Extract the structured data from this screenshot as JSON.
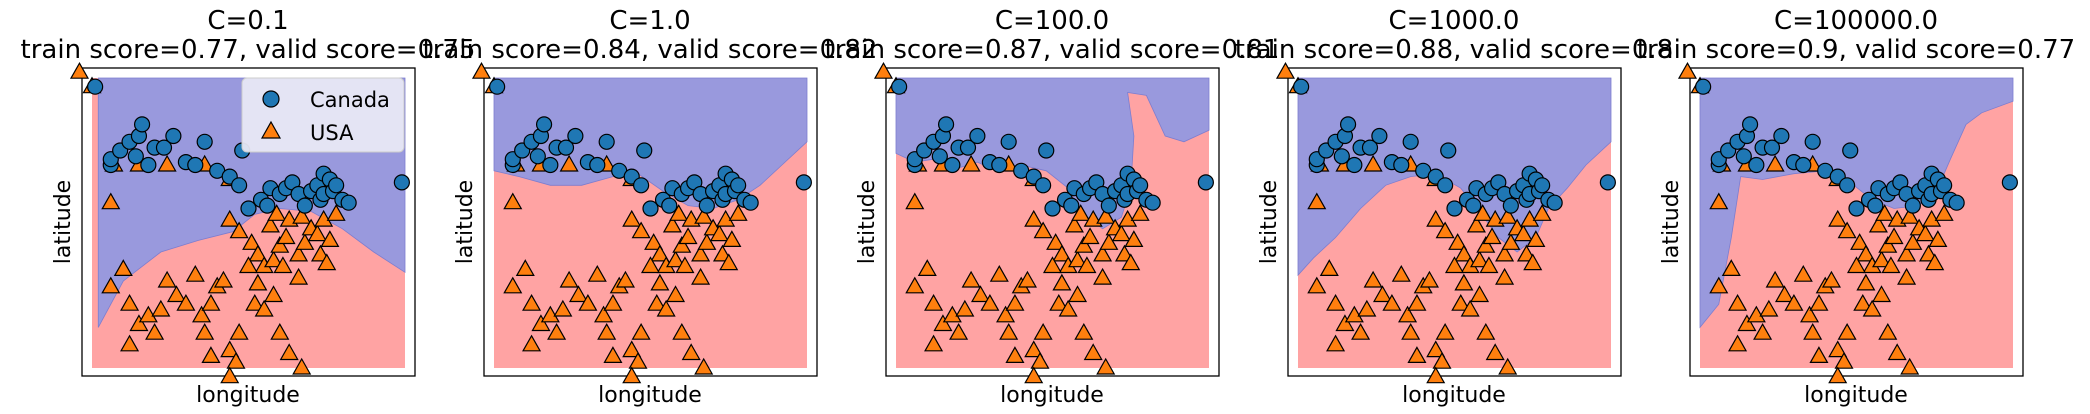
{
  "chart_data": [
    {
      "type": "scatter",
      "title": "C=0.1",
      "subtitle": "train score=0.77, valid score=0.75",
      "xlabel": "longitude",
      "ylabel": "latitude",
      "legend": {
        "entries": [
          "Canada",
          "USA"
        ],
        "placement": "top-right"
      },
      "decision_boundary": [
        [
          0.02,
          0.14
        ],
        [
          0.1,
          0.3
        ],
        [
          0.22,
          0.4
        ],
        [
          0.34,
          0.44
        ],
        [
          0.45,
          0.47
        ],
        [
          0.52,
          0.53
        ],
        [
          0.6,
          0.55
        ],
        [
          0.7,
          0.54
        ],
        [
          0.8,
          0.48
        ],
        [
          0.9,
          0.4
        ],
        [
          1.0,
          0.33
        ]
      ]
    },
    {
      "type": "scatter",
      "title": "C=1.0",
      "subtitle": "train score=0.84, valid score=0.82",
      "xlabel": "longitude",
      "ylabel": "latitude",
      "decision_boundary": [
        [
          0.0,
          0.68
        ],
        [
          0.08,
          0.66
        ],
        [
          0.18,
          0.63
        ],
        [
          0.28,
          0.63
        ],
        [
          0.38,
          0.66
        ],
        [
          0.46,
          0.67
        ],
        [
          0.54,
          0.61
        ],
        [
          0.62,
          0.56
        ],
        [
          0.7,
          0.55
        ],
        [
          0.78,
          0.58
        ],
        [
          0.85,
          0.63
        ],
        [
          0.92,
          0.7
        ],
        [
          1.0,
          0.78
        ]
      ]
    },
    {
      "type": "scatter",
      "title": "C=100.0",
      "subtitle": "train score=0.87, valid score=0.81",
      "xlabel": "longitude",
      "ylabel": "latitude",
      "decision_boundary": [
        [
          0.0,
          0.74
        ],
        [
          0.06,
          0.71
        ],
        [
          0.12,
          0.72
        ],
        [
          0.2,
          0.69
        ],
        [
          0.26,
          0.71
        ],
        [
          0.32,
          0.68
        ],
        [
          0.4,
          0.7
        ],
        [
          0.48,
          0.68
        ],
        [
          0.55,
          0.62
        ],
        [
          0.6,
          0.53
        ],
        [
          0.66,
          0.48
        ],
        [
          0.72,
          0.52
        ],
        [
          0.75,
          0.62
        ],
        [
          0.76,
          0.8
        ],
        [
          0.74,
          0.95
        ],
        [
          0.8,
          0.94
        ],
        [
          0.86,
          0.8
        ],
        [
          0.92,
          0.78
        ],
        [
          1.0,
          0.82
        ]
      ]
    },
    {
      "type": "scatter",
      "title": "C=1000.0",
      "subtitle": "train score=0.88, valid score=0.8",
      "xlabel": "longitude",
      "ylabel": "latitude",
      "decision_boundary": [
        [
          0.0,
          0.32
        ],
        [
          0.05,
          0.38
        ],
        [
          0.12,
          0.45
        ],
        [
          0.2,
          0.55
        ],
        [
          0.28,
          0.63
        ],
        [
          0.36,
          0.66
        ],
        [
          0.44,
          0.67
        ],
        [
          0.52,
          0.62
        ],
        [
          0.58,
          0.54
        ],
        [
          0.64,
          0.45
        ],
        [
          0.7,
          0.4
        ],
        [
          0.76,
          0.45
        ],
        [
          0.8,
          0.55
        ],
        [
          0.86,
          0.62
        ],
        [
          0.92,
          0.7
        ],
        [
          1.0,
          0.78
        ]
      ]
    },
    {
      "type": "scatter",
      "title": "C=100000.0",
      "subtitle": "train score=0.9, valid score=0.77",
      "xlabel": "longitude",
      "ylabel": "latitude",
      "decision_boundary": [
        [
          0.0,
          0.14
        ],
        [
          0.06,
          0.22
        ],
        [
          0.1,
          0.45
        ],
        [
          0.13,
          0.66
        ],
        [
          0.2,
          0.65
        ],
        [
          0.3,
          0.67
        ],
        [
          0.4,
          0.68
        ],
        [
          0.48,
          0.64
        ],
        [
          0.55,
          0.58
        ],
        [
          0.62,
          0.55
        ],
        [
          0.7,
          0.56
        ],
        [
          0.76,
          0.62
        ],
        [
          0.8,
          0.72
        ],
        [
          0.85,
          0.84
        ],
        [
          0.9,
          0.88
        ],
        [
          1.0,
          0.92
        ]
      ]
    }
  ],
  "points": {
    "canada": [
      [
        0.01,
        0.97
      ],
      [
        0.06,
        0.7
      ],
      [
        0.06,
        0.72
      ],
      [
        0.09,
        0.75
      ],
      [
        0.12,
        0.78
      ],
      [
        0.14,
        0.73
      ],
      [
        0.15,
        0.8
      ],
      [
        0.16,
        0.84
      ],
      [
        0.18,
        0.7
      ],
      [
        0.2,
        0.76
      ],
      [
        0.23,
        0.76
      ],
      [
        0.26,
        0.8
      ],
      [
        0.3,
        0.71
      ],
      [
        0.33,
        0.7
      ],
      [
        0.36,
        0.78
      ],
      [
        0.4,
        0.68
      ],
      [
        0.44,
        0.66
      ],
      [
        0.47,
        0.63
      ],
      [
        0.48,
        0.75
      ],
      [
        0.5,
        0.55
      ],
      [
        0.54,
        0.58
      ],
      [
        0.56,
        0.56
      ],
      [
        0.57,
        0.62
      ],
      [
        0.6,
        0.6
      ],
      [
        0.62,
        0.62
      ],
      [
        0.64,
        0.64
      ],
      [
        0.66,
        0.6
      ],
      [
        0.68,
        0.56
      ],
      [
        0.7,
        0.61
      ],
      [
        0.72,
        0.63
      ],
      [
        0.73,
        0.58
      ],
      [
        0.74,
        0.6
      ],
      [
        0.74,
        0.67
      ],
      [
        0.76,
        0.65
      ],
      [
        0.77,
        0.61
      ],
      [
        0.78,
        0.63
      ],
      [
        0.8,
        0.58
      ],
      [
        0.82,
        0.57
      ],
      [
        0.99,
        0.64
      ]
    ],
    "usa": [
      [
        -0.04,
        1.02
      ],
      [
        0.0,
        0.97
      ],
      [
        0.06,
        0.57
      ],
      [
        0.07,
        0.7
      ],
      [
        0.15,
        0.7
      ],
      [
        0.24,
        0.7
      ],
      [
        0.36,
        0.7
      ],
      [
        0.44,
        0.65
      ],
      [
        0.44,
        0.51
      ],
      [
        0.47,
        0.47
      ],
      [
        0.51,
        0.43
      ],
      [
        0.53,
        0.39
      ],
      [
        0.53,
        0.29
      ],
      [
        0.55,
        0.35
      ],
      [
        0.57,
        0.49
      ],
      [
        0.58,
        0.37
      ],
      [
        0.59,
        0.53
      ],
      [
        0.6,
        0.42
      ],
      [
        0.61,
        0.35
      ],
      [
        0.62,
        0.45
      ],
      [
        0.63,
        0.51
      ],
      [
        0.66,
        0.39
      ],
      [
        0.66,
        0.31
      ],
      [
        0.67,
        0.52
      ],
      [
        0.68,
        0.43
      ],
      [
        0.7,
        0.48
      ],
      [
        0.72,
        0.46
      ],
      [
        0.73,
        0.39
      ],
      [
        0.74,
        0.51
      ],
      [
        0.75,
        0.36
      ],
      [
        0.76,
        0.44
      ],
      [
        0.78,
        0.53
      ],
      [
        0.06,
        0.28
      ],
      [
        0.1,
        0.34
      ],
      [
        0.12,
        0.22
      ],
      [
        0.15,
        0.15
      ],
      [
        0.18,
        0.18
      ],
      [
        0.2,
        0.12
      ],
      [
        0.22,
        0.2
      ],
      [
        0.24,
        0.3
      ],
      [
        0.27,
        0.25
      ],
      [
        0.3,
        0.22
      ],
      [
        0.33,
        0.32
      ],
      [
        0.35,
        0.18
      ],
      [
        0.36,
        0.12
      ],
      [
        0.38,
        0.22
      ],
      [
        0.4,
        0.28
      ],
      [
        0.42,
        0.3
      ],
      [
        0.44,
        0.06
      ],
      [
        0.46,
        0.02
      ],
      [
        0.47,
        0.12
      ],
      [
        0.5,
        0.35
      ],
      [
        0.52,
        0.22
      ],
      [
        0.55,
        0.2
      ],
      [
        0.58,
        0.25
      ],
      [
        0.6,
        0.12
      ],
      [
        0.63,
        0.05
      ],
      [
        0.67,
        0.0
      ],
      [
        0.44,
        -0.03
      ],
      [
        0.38,
        0.04
      ],
      [
        0.12,
        0.08
      ]
    ]
  },
  "colors": {
    "canada_region": "#9999dd",
    "usa_region": "#ffa3a3",
    "canada_marker": "#1f77b4",
    "usa_marker": "#ff7f0e",
    "marker_edge": "#000000",
    "legend_bg": "#e8e8f4"
  }
}
